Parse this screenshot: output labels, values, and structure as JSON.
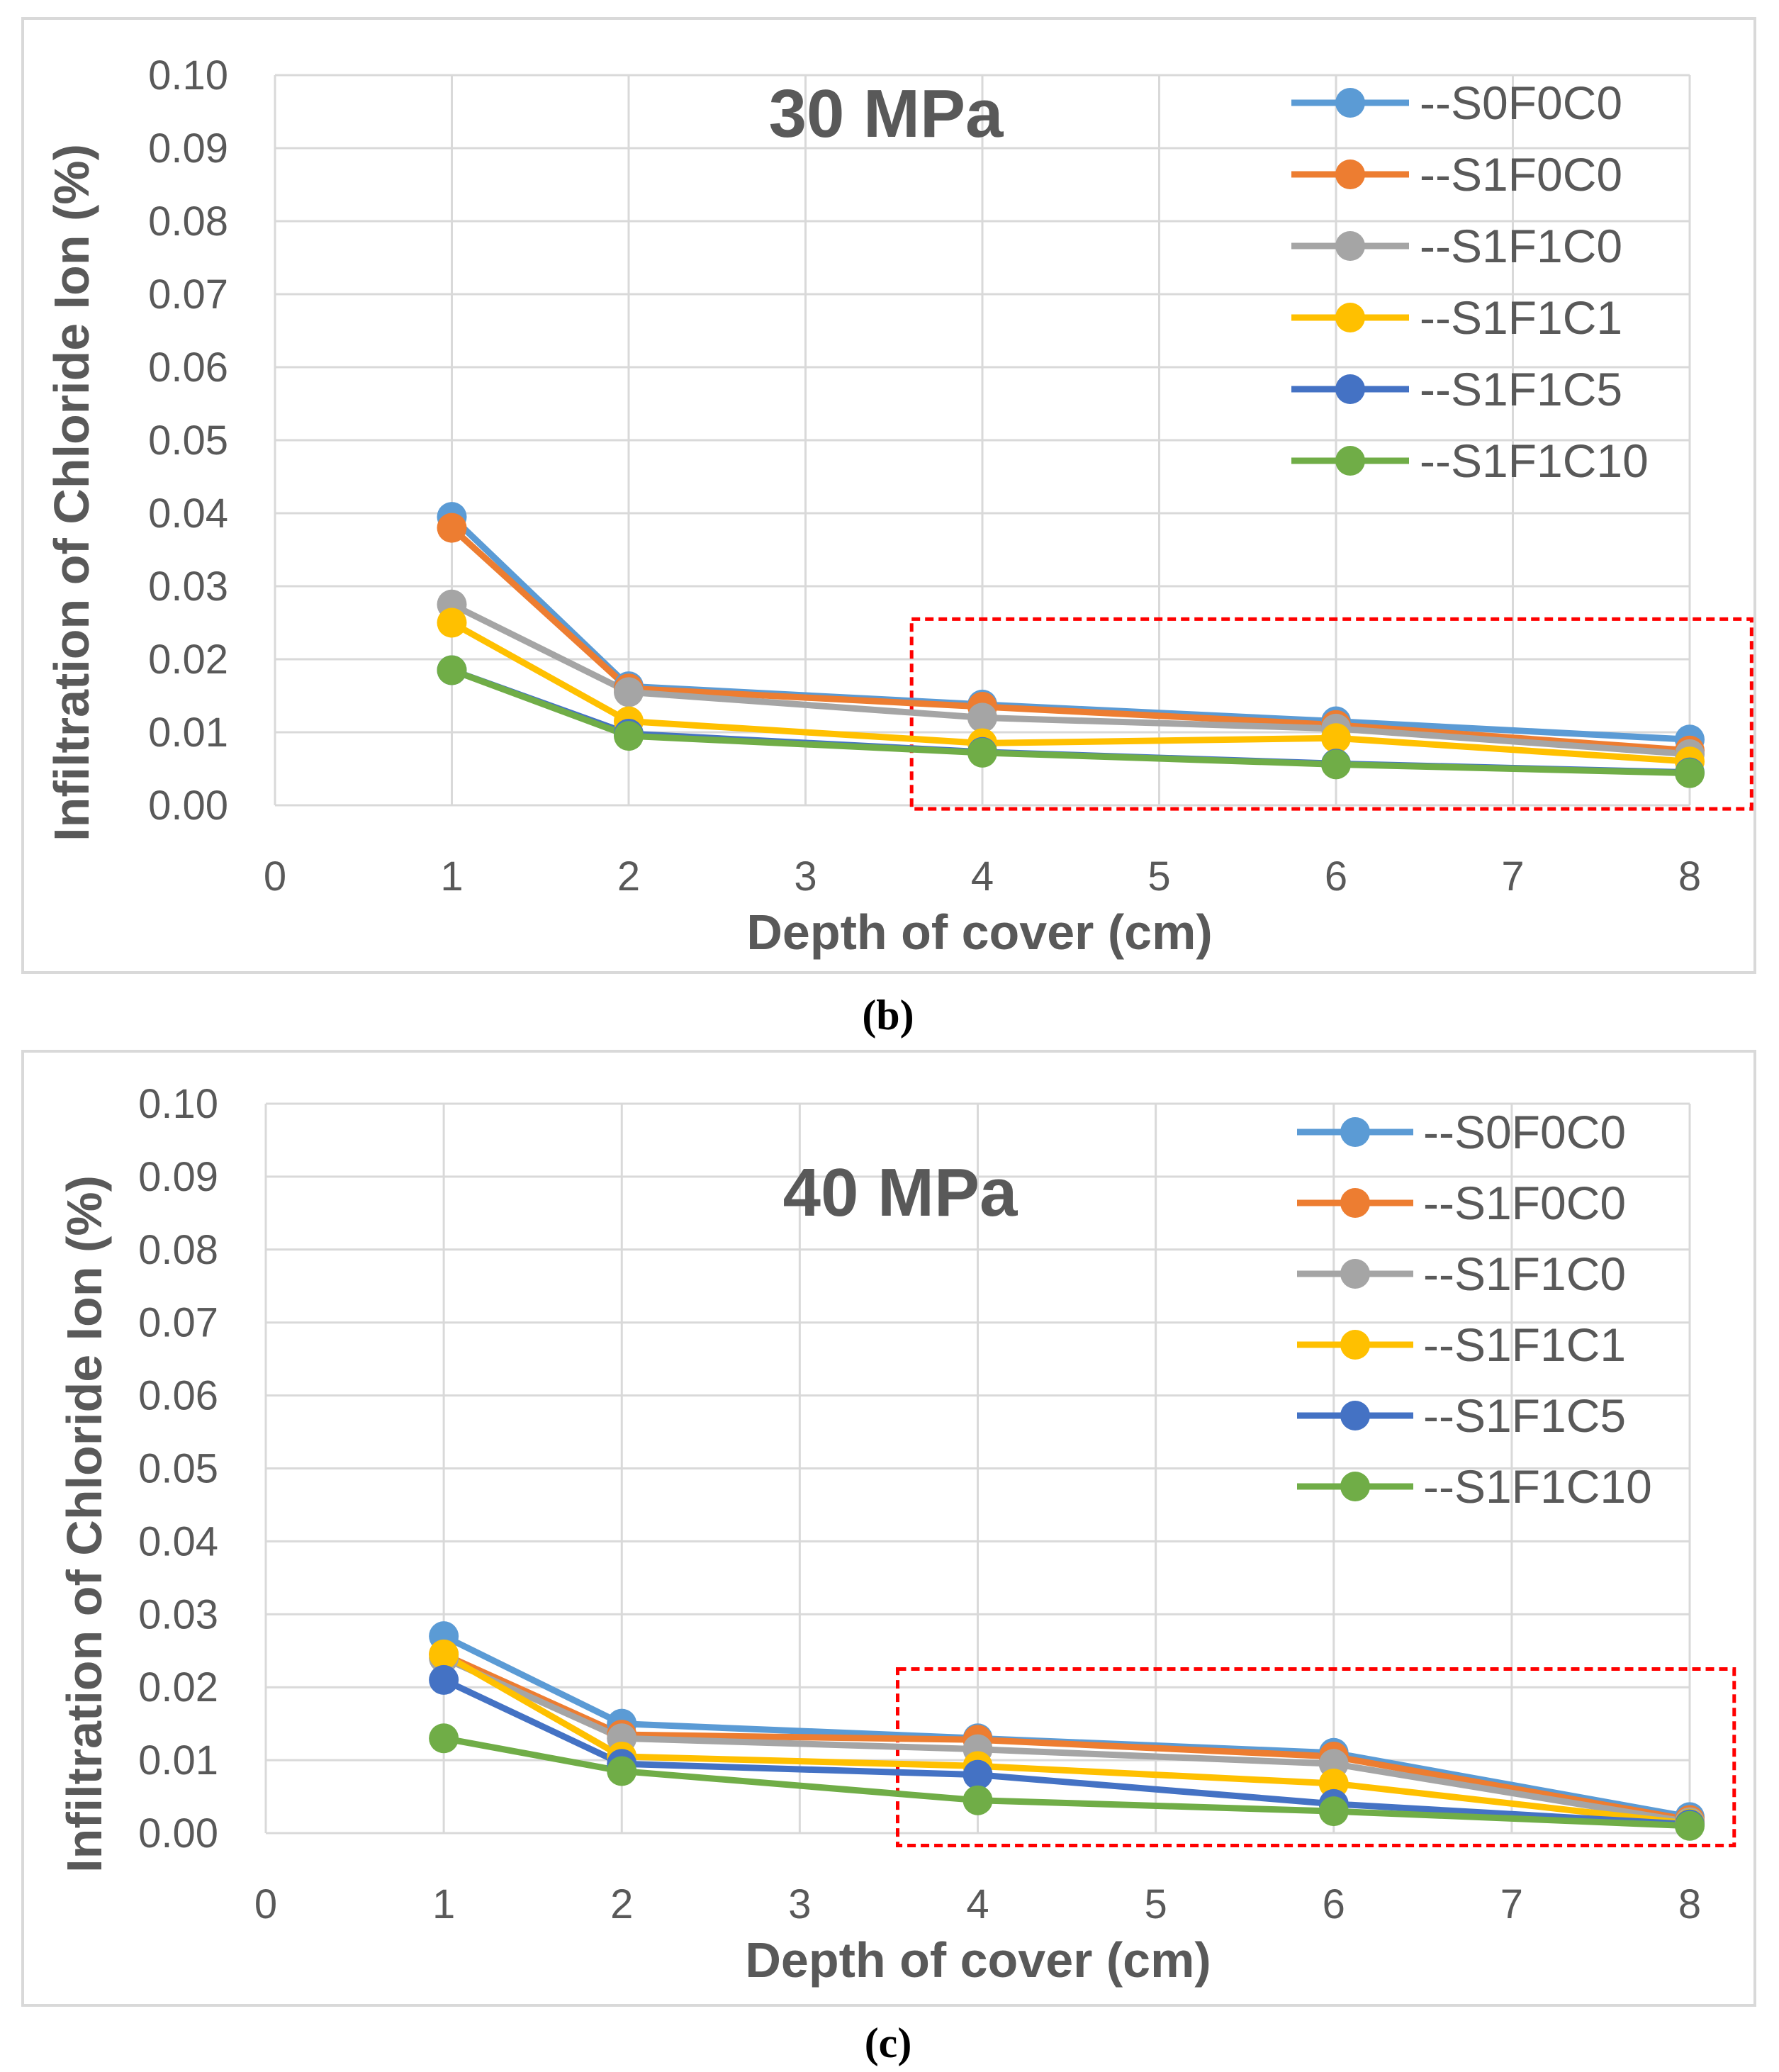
{
  "chart_data": [
    {
      "type": "line",
      "title": "30 MPa",
      "caption": "(b)",
      "xlabel": "Depth of cover (cm)",
      "ylabel": "Infiltration of Chloride Ion (%)",
      "xlim": [
        0,
        8
      ],
      "ylim": [
        0,
        0.1
      ],
      "x_tick_labels": [
        "0",
        "1",
        "2",
        "3",
        "4",
        "5",
        "6",
        "7",
        "8"
      ],
      "y_tick_labels": [
        "0.00",
        "0.01",
        "0.02",
        "0.03",
        "0.04",
        "0.05",
        "0.06",
        "0.07",
        "0.08",
        "0.09",
        "0.10"
      ],
      "grid": true,
      "legend_position": "top-right",
      "highlight_box": {
        "x_from": 3.6,
        "x_to": 8.35,
        "y_from": -0.0005,
        "y_to": 0.0255,
        "color": "#ff0000",
        "style": "dashed"
      },
      "x": [
        1,
        2,
        4,
        6,
        8
      ],
      "series": [
        {
          "name": "--S0F0C0",
          "color": "#5B9BD5",
          "values": [
            0.0395,
            0.0163,
            0.0138,
            0.0115,
            0.009
          ]
        },
        {
          "name": "--S1F0C0",
          "color": "#ED7D31",
          "values": [
            0.038,
            0.016,
            0.0135,
            0.011,
            0.0075
          ]
        },
        {
          "name": "--S1F1C0",
          "color": "#A5A5A5",
          "values": [
            0.0275,
            0.0155,
            0.012,
            0.0105,
            0.007
          ]
        },
        {
          "name": "--S1F1C1",
          "color": "#FFC000",
          "values": [
            0.025,
            0.0115,
            0.0085,
            0.0092,
            0.006
          ]
        },
        {
          "name": "--S1F1C5",
          "color": "#4472C4",
          "values": [
            0.0185,
            0.0098,
            0.0073,
            0.0057,
            0.0045
          ]
        },
        {
          "name": "--S1F1C10",
          "color": "#70AD47",
          "values": [
            0.0185,
            0.0095,
            0.0072,
            0.0056,
            0.0044
          ]
        }
      ]
    },
    {
      "type": "line",
      "title": "40 MPa",
      "caption": "(c)",
      "xlabel": "Depth of cover (cm)",
      "ylabel": "Infiltration of Chloride Ion (%)",
      "xlim": [
        0,
        8
      ],
      "ylim": [
        0,
        0.1
      ],
      "x_tick_labels": [
        "0",
        "1",
        "2",
        "3",
        "4",
        "5",
        "6",
        "7",
        "8"
      ],
      "y_tick_labels": [
        "0.00",
        "0.01",
        "0.02",
        "0.03",
        "0.04",
        "0.05",
        "0.06",
        "0.07",
        "0.08",
        "0.09",
        "0.10"
      ],
      "grid": true,
      "legend_position": "top-right",
      "highlight_box": {
        "x_from": 3.55,
        "x_to": 8.25,
        "y_from": -0.0017,
        "y_to": 0.0225,
        "color": "#ff0000",
        "style": "dashed"
      },
      "x": [
        1,
        2,
        4,
        6,
        8
      ],
      "series": [
        {
          "name": "--S0F0C0",
          "color": "#5B9BD5",
          "values": [
            0.027,
            0.015,
            0.013,
            0.011,
            0.0022
          ]
        },
        {
          "name": "--S1F0C0",
          "color": "#ED7D31",
          "values": [
            0.0245,
            0.0135,
            0.0128,
            0.0105,
            0.0018
          ]
        },
        {
          "name": "--S1F1C0",
          "color": "#A5A5A5",
          "values": [
            0.024,
            0.013,
            0.0115,
            0.0095,
            0.0015
          ]
        },
        {
          "name": "--S1F1C1",
          "color": "#FFC000",
          "values": [
            0.0245,
            0.0105,
            0.0092,
            0.0068,
            0.0013
          ]
        },
        {
          "name": "--S1F1C5",
          "color": "#4472C4",
          "values": [
            0.021,
            0.0095,
            0.008,
            0.004,
            0.0012
          ]
        },
        {
          "name": "--S1F1C10",
          "color": "#70AD47",
          "values": [
            0.013,
            0.0085,
            0.0045,
            0.003,
            0.001
          ]
        }
      ]
    }
  ]
}
